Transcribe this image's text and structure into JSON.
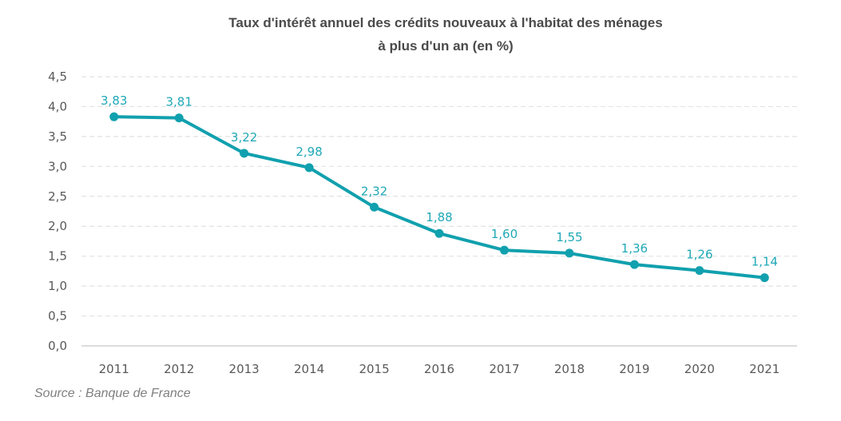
{
  "chart_data": {
    "type": "line",
    "title": [
      "Taux d'intérêt annuel des crédits nouveaux à l'habitat des ménages",
      "à plus d'un an (en %)"
    ],
    "xlabel": "",
    "ylabel": "",
    "categories": [
      "2011",
      "2012",
      "2013",
      "2014",
      "2015",
      "2016",
      "2017",
      "2018",
      "2019",
      "2020",
      "2021"
    ],
    "series": [
      {
        "name": "Taux d'intérêt",
        "values": [
          3.83,
          3.81,
          3.22,
          2.98,
          2.32,
          1.88,
          1.6,
          1.55,
          1.36,
          1.26,
          1.14
        ],
        "labels": [
          "3,83",
          "3,81",
          "3,22",
          "2,98",
          "2,32",
          "1,88",
          "1,60",
          "1,55",
          "1,36",
          "1,26",
          "1,14"
        ],
        "color": "#11a0ae"
      }
    ],
    "ylim": [
      0,
      4.5
    ],
    "yticks": [
      0,
      0.5,
      1.0,
      1.5,
      2.0,
      2.5,
      3.0,
      3.5,
      4.0,
      4.5
    ],
    "ytick_labels": [
      "0,0",
      "0,5",
      "1,0",
      "1,5",
      "2,0",
      "2,5",
      "3,0",
      "3,5",
      "4,0",
      "4,5"
    ],
    "grid": true,
    "legend": "none",
    "source": "Source : Banque de France"
  }
}
